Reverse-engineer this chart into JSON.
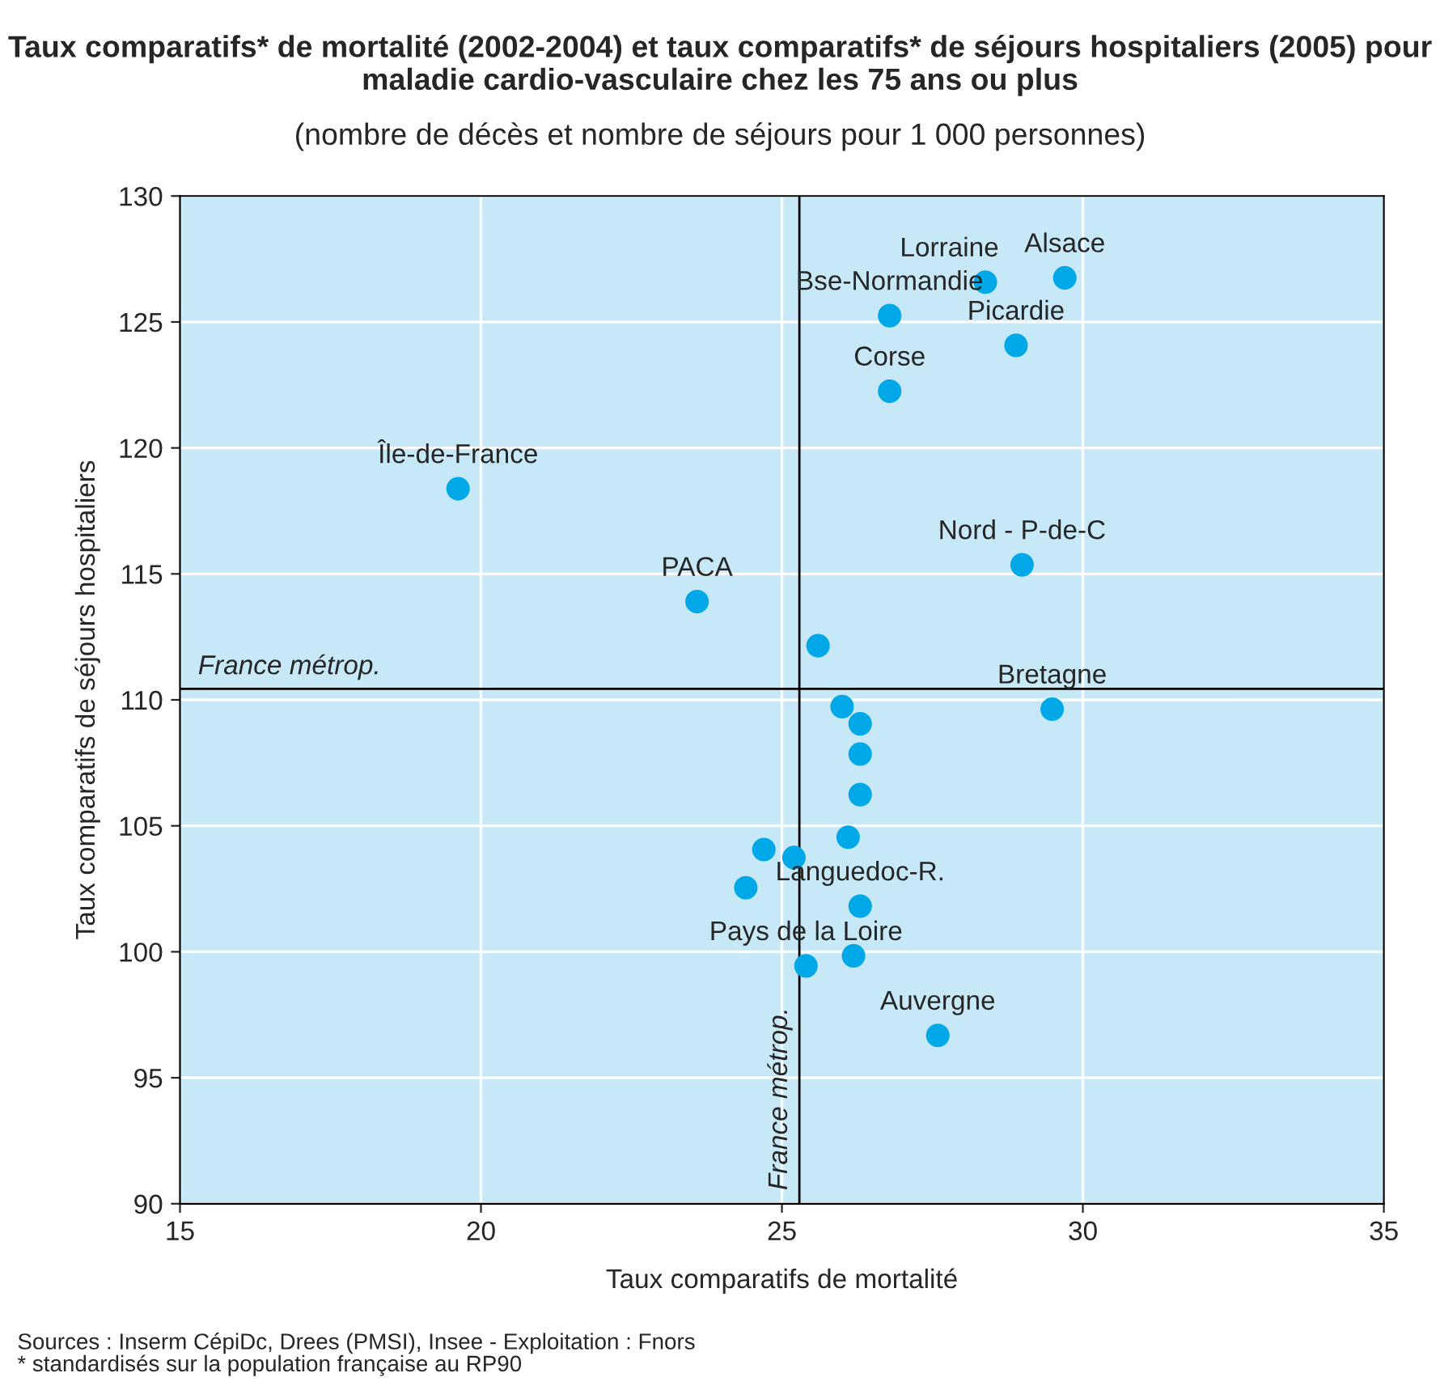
{
  "chart_data": {
    "type": "scatter",
    "title": "Taux comparatifs* de mortalité (2002-2004) et taux comparatifs* de séjours hospitaliers (2005) pour maladie cardio-vasculaire chez les 75 ans ou plus",
    "subtitle": "(nombre de décès et nombre de séjours pour 1 000 personnes)",
    "xlabel": "Taux comparatifs de mortalité",
    "ylabel": "Taux comparatifs de séjours hospitaliers",
    "x": [
      29.7,
      28.38,
      26.79,
      28.89,
      26.79,
      19.62,
      23.59,
      28.99,
      29.49,
      25.6,
      26.0,
      26.3,
      26.3,
      26.3,
      26.1,
      24.7,
      25.2,
      24.4,
      26.3,
      26.19,
      25.4,
      27.59
    ],
    "series": [
      {
        "color": "#00a8e8",
        "values": [
          126.75,
          126.58,
          125.25,
          124.07,
          122.25,
          118.38,
          113.9,
          115.36,
          109.63,
          112.15,
          109.73,
          109.05,
          107.85,
          106.24,
          104.55,
          104.06,
          103.74,
          102.54,
          101.81,
          99.84,
          99.44,
          96.68
        ]
      }
    ],
    "marker": "circle",
    "xlim": [
      15,
      35
    ],
    "ylim": [
      90,
      130
    ],
    "xticks": [
      15,
      20,
      25,
      30,
      35
    ],
    "yticks": [
      90,
      95,
      100,
      105,
      110,
      115,
      120,
      125,
      130
    ],
    "grid": true,
    "ref_lines": [
      {
        "axis": "y",
        "value": 110.44,
        "label": "France métrop.",
        "color": "#000000"
      },
      {
        "axis": "x",
        "value": 25.29,
        "label": "France métrop.",
        "color": "#000000"
      }
    ],
    "annotations": [
      {
        "text": "Alsace",
        "x": 29.7,
        "y": 126.75
      },
      {
        "text": "Lorraine",
        "x": 28.38,
        "y": 126.58
      },
      {
        "text": "Bse-Normandie",
        "x": 26.79,
        "y": 125.25
      },
      {
        "text": "Picardie",
        "x": 28.89,
        "y": 124.07
      },
      {
        "text": "Corse",
        "x": 26.79,
        "y": 122.25
      },
      {
        "text": "Île-de-France",
        "x": 19.62,
        "y": 118.38
      },
      {
        "text": "PACA",
        "x": 23.59,
        "y": 113.9
      },
      {
        "text": "Nord - P-de-C",
        "x": 28.99,
        "y": 115.36
      },
      {
        "text": "Bretagne",
        "x": 29.49,
        "y": 109.63
      },
      {
        "text": "Languedoc-R.",
        "x": 26.3,
        "y": 101.81
      },
      {
        "text": "Pays de la Loire",
        "x": 25.4,
        "y": 99.44
      },
      {
        "text": "Auvergne",
        "x": 27.59,
        "y": 96.68
      },
      "Sources : Inserm CépiDc, Drees (PMSI), Insee - Exploitation : Fnors",
      "* standardisés sur la population française au RP90"
    ]
  }
}
